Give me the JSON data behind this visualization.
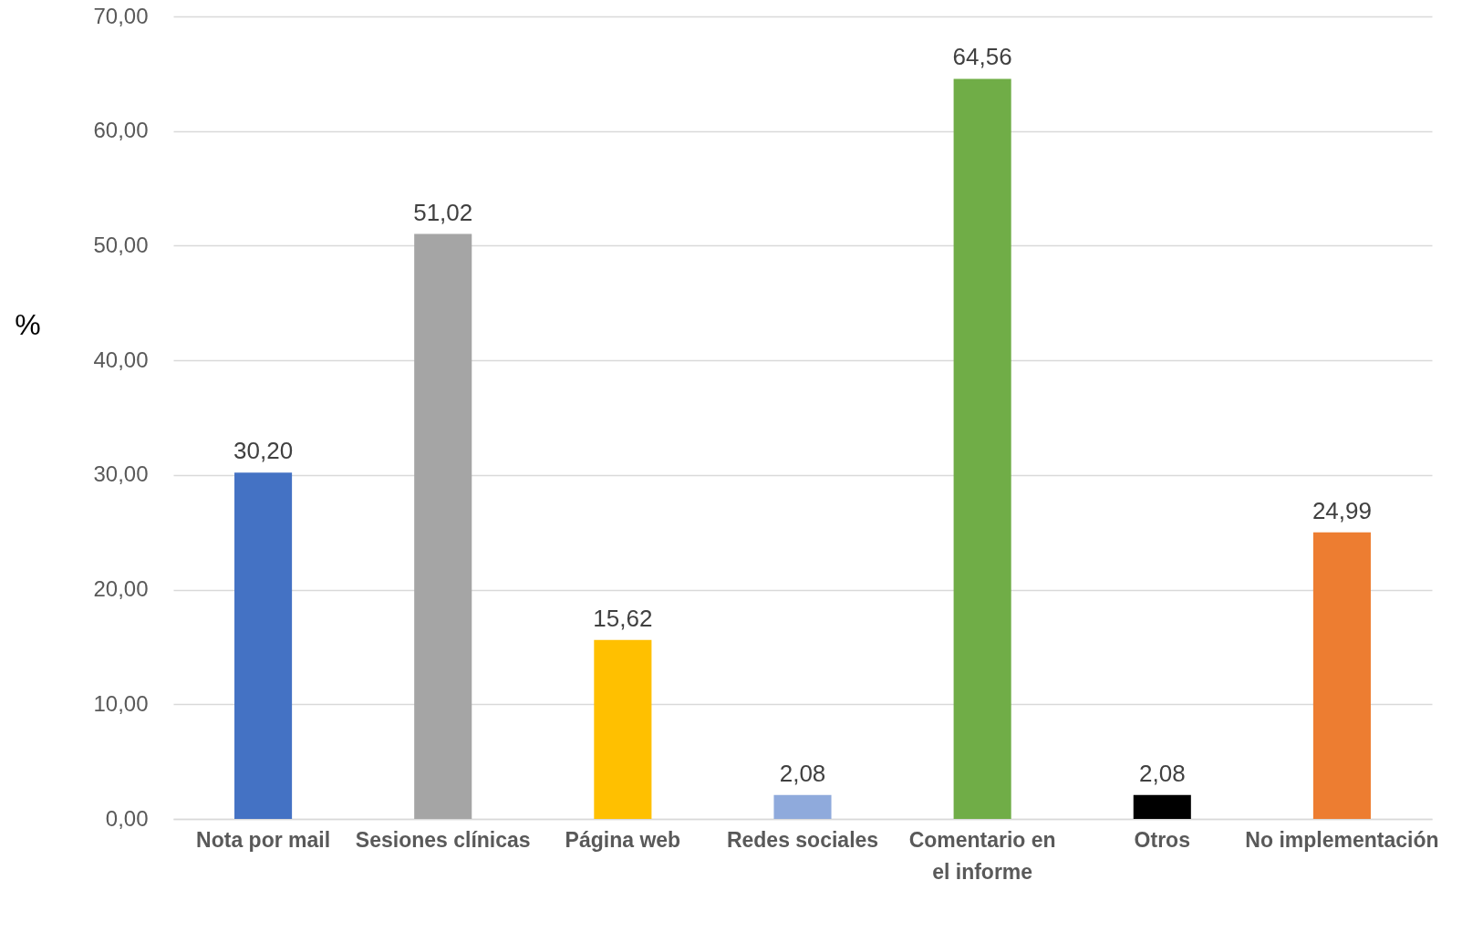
{
  "chart_data": {
    "type": "bar",
    "categories": [
      "Nota por mail",
      "Sesiones clínicas",
      "Página web",
      "Redes sociales",
      "Comentario en el informe",
      "Otros",
      "No implementación"
    ],
    "values": [
      30.2,
      51.02,
      15.62,
      2.08,
      64.56,
      2.08,
      24.99
    ],
    "colors": [
      "#4472c4",
      "#a5a5a5",
      "#ffc000",
      "#8faadc",
      "#70ad47",
      "#000000",
      "#ed7d31"
    ],
    "value_labels": [
      "30,20",
      "51,02",
      "15,62",
      "2,08",
      "64,56",
      "2,08",
      "24,99"
    ],
    "ylabel": "%",
    "ylim": [
      0,
      70
    ],
    "yticks": [
      {
        "value": 0,
        "label": "0,00"
      },
      {
        "value": 10,
        "label": "10,00"
      },
      {
        "value": 20,
        "label": "20,00"
      },
      {
        "value": 30,
        "label": "30,00"
      },
      {
        "value": 40,
        "label": "40,00"
      },
      {
        "value": 50,
        "label": "50,00"
      },
      {
        "value": 60,
        "label": "60,00"
      },
      {
        "value": 70,
        "label": "70,00"
      }
    ],
    "grid": "y"
  }
}
